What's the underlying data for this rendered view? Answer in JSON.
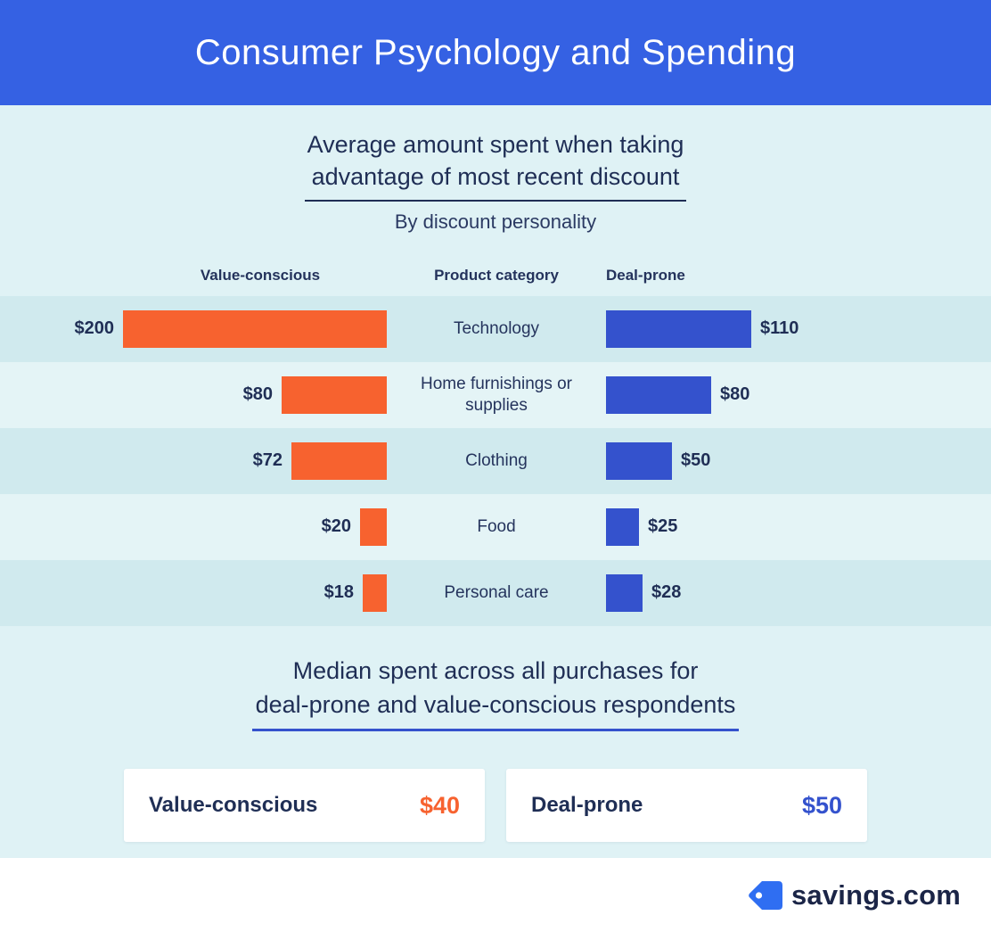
{
  "header": {
    "title": "Consumer Psychology and Spending"
  },
  "section1": {
    "title_line1": "Average amount spent when taking",
    "title_line2": "advantage of most recent discount",
    "subtitle": "By discount personality",
    "columns": {
      "left": "Value-conscious",
      "center": "Product category",
      "right": "Deal-prone"
    }
  },
  "chart_data": {
    "type": "bar",
    "orientation": "horizontal-diverging",
    "title": "Average amount spent when taking advantage of most recent discount",
    "subtitle": "By discount personality",
    "value_prefix": "$",
    "categories": [
      "Technology",
      "Home furnishings or supplies",
      "Clothing",
      "Food",
      "Personal care"
    ],
    "series": [
      {
        "name": "Value-conscious",
        "side": "left",
        "color": "#f7622f",
        "values": [
          200,
          80,
          72,
          20,
          18
        ]
      },
      {
        "name": "Deal-prone",
        "side": "right",
        "color": "#3452cd",
        "values": [
          110,
          80,
          50,
          25,
          28
        ]
      }
    ],
    "axis_max": 200,
    "grid": false,
    "legend_position": "column-headers"
  },
  "section2": {
    "title_line1": "Median spent across all purchases for",
    "title_line2": "deal-prone and value-conscious respondents",
    "cards": [
      {
        "label": "Value-conscious",
        "value": "$40",
        "color": "#f7622f"
      },
      {
        "label": "Deal-prone",
        "value": "$50",
        "color": "#3452cd"
      }
    ]
  },
  "footer": {
    "brand": "savings.com",
    "logo_icon": "price-tag-icon",
    "logo_color": "#2f6ef2"
  },
  "colors": {
    "header_bg": "#3561e3",
    "content_bg": "#dff2f5",
    "row_stripe_dark": "#d0eaee",
    "row_stripe_light": "#e4f4f6",
    "text_navy": "#1f2e55",
    "orange": "#f7622f",
    "blue": "#3452cd"
  }
}
